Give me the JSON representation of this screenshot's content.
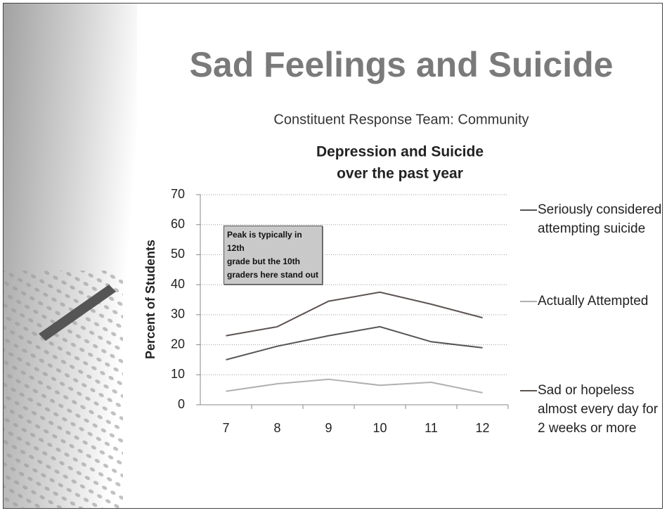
{
  "chart_data": {
    "type": "line",
    "slide_title": "Sad Feelings and Suicide",
    "subtitle": "Constituent Response Team: Community",
    "title": [
      "Depression and Suicide",
      "over the past year"
    ],
    "ylabel": "Percent of Students",
    "annotation": [
      "Peak is typically in 12th",
      "grade but the 10th",
      "graders here stand out"
    ],
    "categories": [
      "7",
      "8",
      "9",
      "10",
      "11",
      "12"
    ],
    "series": [
      {
        "name": "Seriously considered attempting suicide",
        "color": "#555555",
        "values": [
          15,
          19.5,
          23,
          26,
          21,
          19
        ]
      },
      {
        "name": "Actually Attempted",
        "color": "#b0b0b0",
        "values": [
          4.5,
          7,
          8.5,
          6.5,
          7.5,
          4
        ]
      },
      {
        "name": "Sad or hopeless almost every day for 2 weeks or more",
        "color": "#5e5252",
        "values": [
          23,
          26,
          34.5,
          37.5,
          33.5,
          29
        ]
      }
    ],
    "ylim": [
      0,
      70
    ],
    "yticks": [
      0,
      10,
      20,
      30,
      40,
      50,
      60,
      70
    ],
    "grid": true
  }
}
